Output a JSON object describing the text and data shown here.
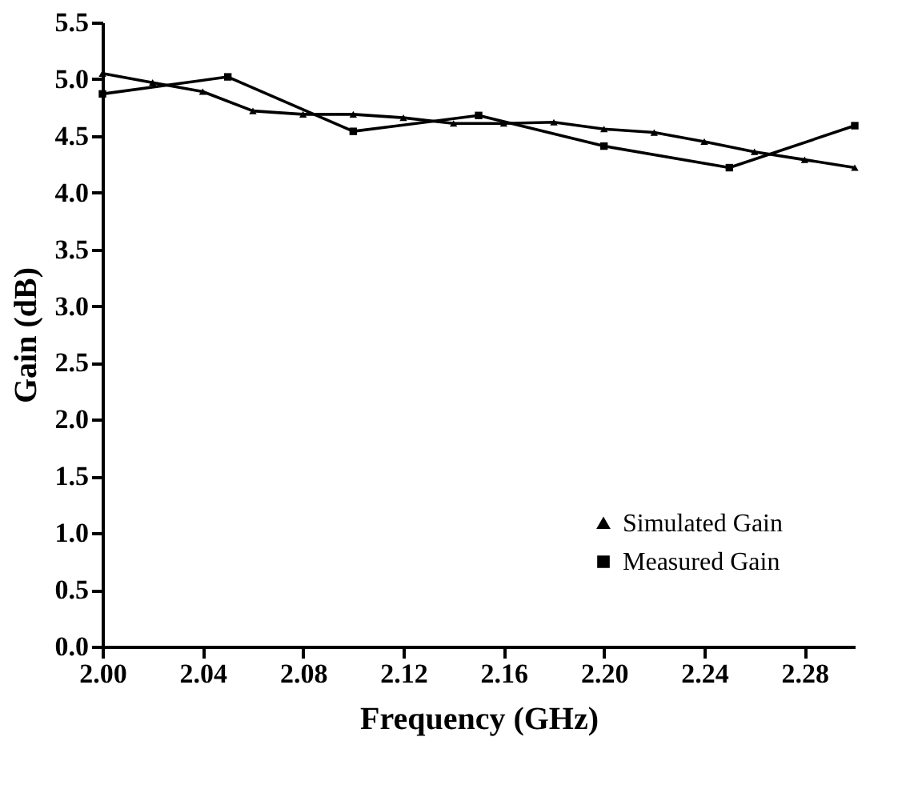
{
  "chart_data": {
    "type": "line",
    "xlabel": "Frequency (GHz)",
    "ylabel": "Gain (dB)",
    "xlim": [
      2.0,
      2.3
    ],
    "xticks": [
      {
        "value": 2.0,
        "label": "2.00"
      },
      2.04,
      2.08,
      2.12,
      2.16,
      {
        "value": 2.2,
        "label": "2.20"
      },
      2.24,
      2.28
    ],
    "ylim": [
      0,
      5.5
    ],
    "yticks": [
      {
        "value": 0,
        "label": "0.0"
      },
      0.5,
      {
        "value": 1,
        "label": "1.0"
      },
      1.5,
      {
        "value": 2,
        "label": "2.0"
      },
      2.5,
      {
        "value": 3,
        "label": "3.0"
      },
      3.5,
      {
        "value": 4,
        "label": "4.0"
      },
      4.5,
      {
        "value": 5,
        "label": "5.0"
      },
      5.5
    ],
    "grid": false,
    "legend": "bottom right",
    "series": [
      {
        "name": "Simulated Gain",
        "color": "#000000",
        "marker": "triangle",
        "line_style": "solid",
        "x": [
          2.0,
          2.02,
          2.04,
          2.06,
          2.08,
          2.1,
          2.12,
          2.14,
          2.16,
          2.18,
          2.2,
          2.22,
          2.24,
          2.26,
          2.28,
          2.3
        ],
        "values": [
          5.05,
          4.97,
          4.89,
          4.72,
          4.69,
          4.69,
          4.66,
          4.61,
          4.61,
          4.62,
          4.56,
          4.53,
          4.45,
          4.36,
          4.29,
          4.22
        ]
      },
      {
        "name": "Measured Gain",
        "color": "#000000",
        "marker": "square",
        "line_style": "solid",
        "x": [
          2.0,
          2.05,
          2.1,
          2.15,
          2.2,
          2.25,
          2.3
        ],
        "values": [
          4.87,
          5.02,
          4.54,
          4.68,
          4.41,
          4.22,
          4.59
        ]
      }
    ]
  }
}
